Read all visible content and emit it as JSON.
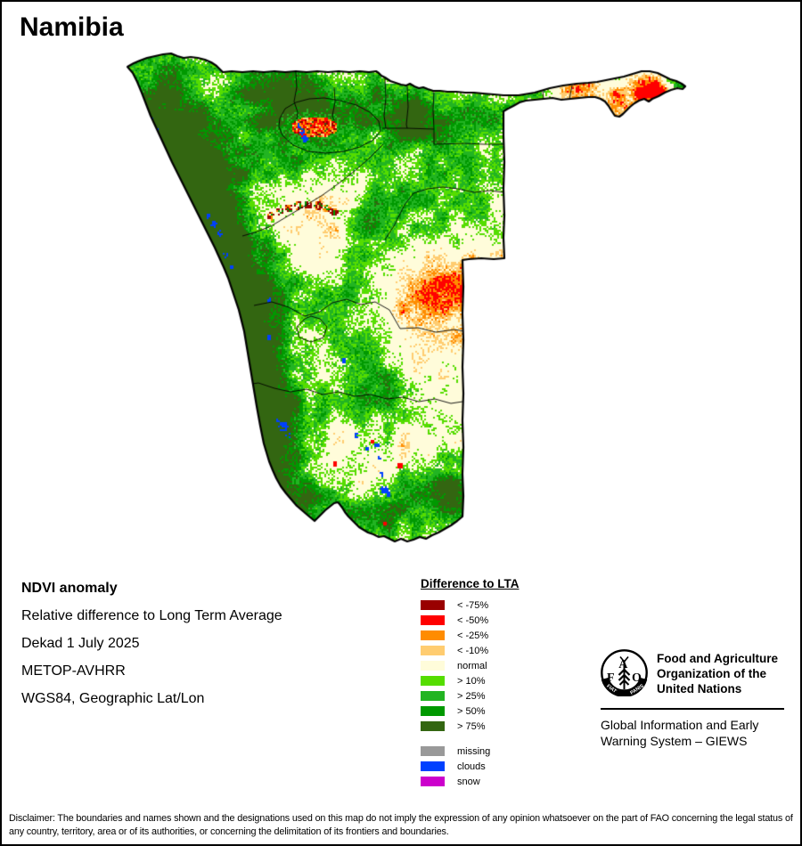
{
  "title": "Namibia",
  "info": {
    "heading": "NDVI anomaly",
    "line1": "Relative difference to Long Term Average",
    "line2": "Dekad 1 July 2025",
    "line3": "METOP-AVHRR",
    "line4": "WGS84, Geographic Lat/Lon"
  },
  "legend": {
    "title": "Difference to LTA",
    "items": [
      {
        "label": "< -75%",
        "key": "lt_m75"
      },
      {
        "label": "< -50%",
        "key": "lt_m50"
      },
      {
        "label": "< -25%",
        "key": "lt_m25"
      },
      {
        "label": "< -10%",
        "key": "lt_m10"
      },
      {
        "label": "normal",
        "key": "normal"
      },
      {
        "label": "> 10%",
        "key": "gt_10"
      },
      {
        "label": "> 25%",
        "key": "gt_25"
      },
      {
        "label": "> 50%",
        "key": "gt_50"
      },
      {
        "label": "> 75%",
        "key": "gt_75"
      }
    ],
    "extra_items": [
      {
        "label": "missing",
        "key": "missing"
      },
      {
        "label": "clouds",
        "key": "clouds"
      },
      {
        "label": "snow",
        "key": "snow"
      }
    ]
  },
  "map": {
    "palette": {
      "outline": "#000000",
      "background": "#ffffff",
      "lt_m75": "#990000",
      "lt_m50": "#ff0000",
      "lt_m25": "#ff8c00",
      "lt_m10": "#ffcc70",
      "normal": "#fffcda",
      "gt_10": "#55dd00",
      "gt_25": "#22b422",
      "gt_50": "#009900",
      "gt_75": "#336611",
      "missing": "#999999",
      "clouds": "#0040ff",
      "snow": "#cc00cc"
    }
  },
  "fao": {
    "logo_letters": "FAO",
    "motto_left": "FIAT",
    "motto_right": "PANIS",
    "org_lines": [
      "Food and Agriculture",
      "Organization of the",
      "United Nations"
    ],
    "giews_lines": [
      "Global Information and Early",
      "Warning System – GIEWS"
    ]
  },
  "disclaimer": "Disclaimer: The boundaries and names shown and the designations used on this map do not imply the expression of any opinion whatsoever on the part of FAO concerning the legal status of any country, territory, area or of its authorities, or concerning the delimitation of its frontiers and boundaries."
}
